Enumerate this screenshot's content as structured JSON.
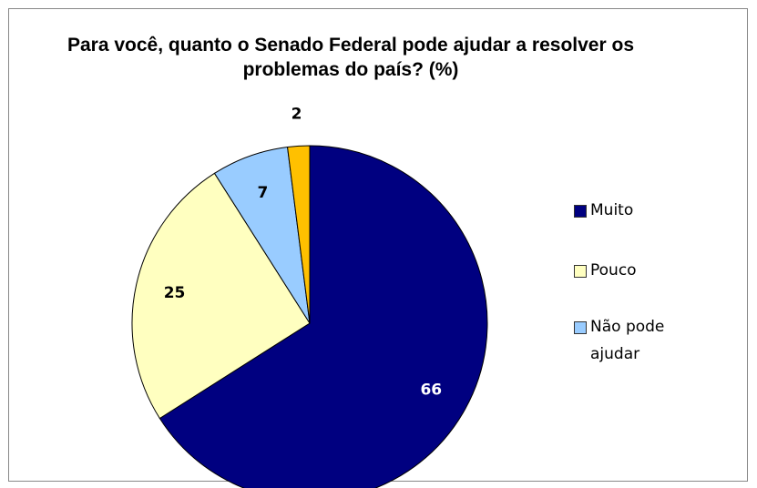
{
  "chart_data": {
    "type": "pie",
    "title": "Para você, quanto o Senado Federal pode ajudar a resolver os problemas do país? (%)",
    "categories": [
      "Muito",
      "Pouco",
      "Não pode ajudar",
      null
    ],
    "values": [
      66,
      25,
      7,
      2
    ],
    "colors": [
      "#000080",
      "#ffffc0",
      "#99ccff",
      "#ffc000"
    ],
    "legend": "right"
  }
}
